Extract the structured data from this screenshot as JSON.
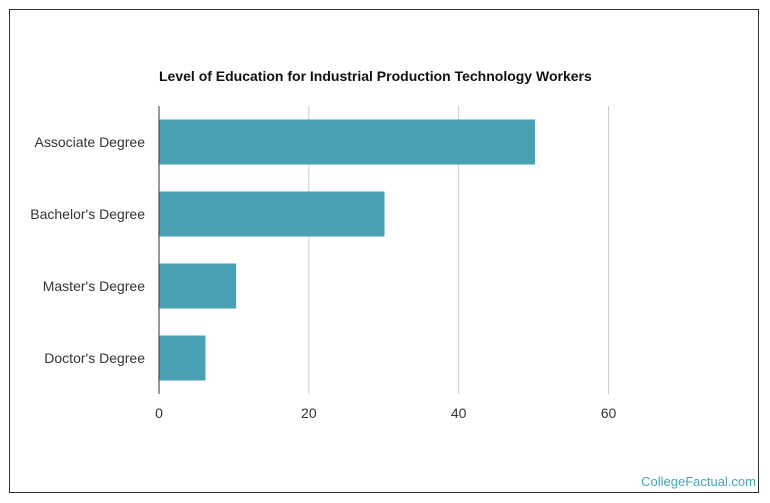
{
  "chart_data": {
    "type": "bar",
    "orientation": "horizontal",
    "title": "Level of Education for Industrial Production Technology Workers",
    "categories": [
      "Associate Degree",
      "Bachelor's Degree",
      "Master's Degree",
      "Doctor's Degree"
    ],
    "values": [
      50.2,
      30.1,
      10.3,
      6.2
    ],
    "xlim": [
      0,
      60
    ],
    "xticks": [
      0,
      20,
      40,
      60
    ],
    "xlabel": "",
    "ylabel": "",
    "grid": "vertical",
    "bar_color": "#4aa1b4"
  },
  "watermark": "CollegeFactual.com"
}
